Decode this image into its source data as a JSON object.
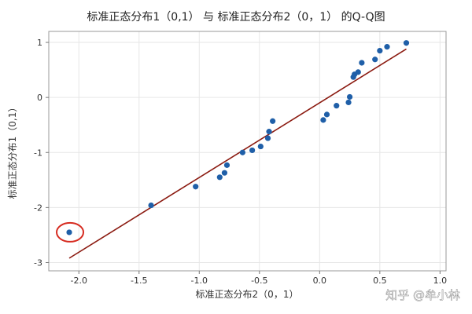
{
  "chart_data": {
    "type": "scatter",
    "title": "标准正态分布1（0,1） 与 标准正态分布2（0，1） 的Q-Q图",
    "xlabel": "标准正态分布2（0，1）",
    "ylabel": "标准正态分布1（0,1）",
    "xlim": [
      -2.25,
      1.05
    ],
    "ylim": [
      -3.15,
      1.2
    ],
    "x_ticks": [
      -2.0,
      -1.5,
      -1.0,
      -0.5,
      0.0,
      0.5,
      1.0
    ],
    "x_tick_labels": [
      "-2.0",
      "-1.5",
      "-1.0",
      "-0.5",
      "0.0",
      "0.5",
      "1.0"
    ],
    "y_ticks": [
      -3,
      -2,
      -1,
      0,
      1
    ],
    "y_tick_labels": [
      "-3",
      "-2",
      "-1",
      "0",
      "1"
    ],
    "grid": true,
    "points": {
      "color": "#1f5fa8",
      "x": [
        -2.08,
        -1.4,
        -1.03,
        -0.83,
        -0.79,
        -0.77,
        -0.64,
        -0.56,
        -0.49,
        -0.43,
        -0.42,
        -0.39,
        0.03,
        0.06,
        0.14,
        0.24,
        0.25,
        0.28,
        0.29,
        0.32,
        0.35,
        0.46,
        0.5,
        0.56,
        0.72
      ],
      "y": [
        -2.45,
        -1.96,
        -1.62,
        -1.45,
        -1.37,
        -1.23,
        -1.0,
        -0.96,
        -0.89,
        -0.74,
        -0.62,
        -0.43,
        -0.41,
        -0.31,
        -0.15,
        -0.09,
        0.01,
        0.37,
        0.42,
        0.46,
        0.63,
        0.69,
        0.85,
        0.92,
        0.99
      ]
    },
    "reference_line": {
      "x": [
        -2.08,
        0.72
      ],
      "y": [
        -2.92,
        0.88
      ],
      "color": "#8b1a10"
    },
    "highlight": {
      "x": -2.08,
      "y": -2.45,
      "color": "#d62b20"
    },
    "watermark": "知乎 @牟小林"
  }
}
